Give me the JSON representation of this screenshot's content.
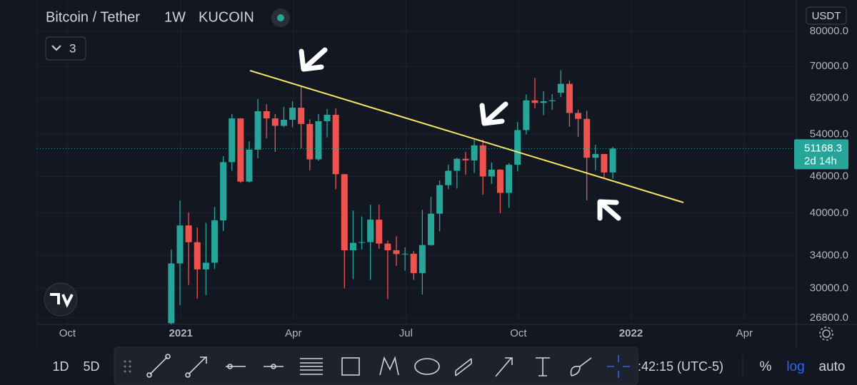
{
  "header": {
    "symbol": "Bitcoin / Tether",
    "interval": "1W",
    "exchange": "KUCOIN",
    "indicators": "3",
    "currency": "USDT"
  },
  "chart_data": {
    "type": "candlestick",
    "log": true,
    "grid": true,
    "up_color": "#26a69a",
    "down_color": "#ef5350",
    "open": [
      26270,
      33000,
      38150,
      35790,
      32260,
      33090,
      38900,
      48580,
      57400,
      45100,
      50950,
      59000,
      57400,
      55800,
      57100,
      59800,
      56200,
      49100,
      56800,
      58200,
      46400,
      34700,
      35700,
      35800,
      39000,
      35600,
      34700,
      34200,
      34250,
      31800,
      35400,
      39900,
      44500,
      47000,
      49200,
      48900,
      51800,
      46000,
      47200,
      43200,
      48100,
      54900,
      61500,
      60900,
      61300,
      63300,
      65500,
      58600,
      57300,
      49400,
      50100,
      46700
    ],
    "high": [
      34780,
      41950,
      40100,
      37850,
      38530,
      40950,
      49700,
      58350,
      57500,
      52600,
      61800,
      60600,
      58400,
      60000,
      61300,
      64850,
      57200,
      58400,
      59500,
      59600,
      46400,
      40400,
      39500,
      41300,
      41300,
      36000,
      36600,
      35100,
      34600,
      40500,
      42600,
      45300,
      48100,
      49400,
      50500,
      52900,
      52900,
      48500,
      47300,
      48400,
      56600,
      62900,
      67000,
      63700,
      63000,
      69000,
      66300,
      59300,
      59100,
      51900,
      50100,
      51500
    ],
    "low": [
      25900,
      28130,
      30420,
      28850,
      29240,
      32300,
      37350,
      47000,
      44900,
      44950,
      49300,
      53200,
      50500,
      55500,
      55500,
      51200,
      47100,
      48800,
      53400,
      43800,
      30000,
      31100,
      34800,
      31000,
      34900,
      28800,
      32700,
      32100,
      31000,
      29300,
      35300,
      37300,
      43800,
      43900,
      46300,
      46600,
      42900,
      44700,
      40000,
      40800,
      46900,
      54000,
      59600,
      58100,
      59300,
      62300,
      55600,
      53500,
      42000,
      47100,
      45600,
      45600
    ],
    "close": [
      33000,
      38150,
      35790,
      32260,
      33090,
      38900,
      48580,
      57400,
      45100,
      50950,
      59000,
      57400,
      55800,
      57100,
      59800,
      56200,
      49100,
      56800,
      58200,
      46400,
      34700,
      35700,
      35800,
      39000,
      35600,
      34700,
      34200,
      34250,
      31800,
      35400,
      39900,
      44500,
      47000,
      49200,
      48900,
      51800,
      46000,
      47200,
      43200,
      48100,
      54900,
      61500,
      60900,
      61300,
      61500,
      65500,
      58600,
      57300,
      49400,
      50100,
      46700,
      51168.3
    ],
    "last_value": 51168.3,
    "countdown": "2d 14h",
    "ylim": [
      26150,
      90200
    ],
    "yticks": [
      {
        "value": 26800,
        "label": "26800.0"
      },
      {
        "value": 30000,
        "label": "30000.0"
      },
      {
        "value": 34000,
        "label": "34000.0"
      },
      {
        "value": 40000,
        "label": "40000.0"
      },
      {
        "value": 46000,
        "label": "46000.0"
      },
      {
        "value": 54000,
        "label": "54000.0"
      },
      {
        "value": 62000,
        "label": "62000.0"
      },
      {
        "value": 70000,
        "label": "70000.0"
      },
      {
        "value": 80000,
        "label": "80000.0"
      }
    ],
    "xlim": [
      -15.5,
      72.2
    ],
    "xticks": [
      {
        "value": -12,
        "label": "Oct"
      },
      {
        "value": 1.1,
        "label": "2021"
      },
      {
        "value": 14.1,
        "label": "Apr"
      },
      {
        "value": 27.1,
        "label": "Jul"
      },
      {
        "value": 40.1,
        "label": "Oct"
      },
      {
        "value": 53.1,
        "label": "2022"
      },
      {
        "value": 66.2,
        "label": "Apr"
      }
    ]
  },
  "toolbar": {
    "ranges": [
      "1D",
      "5D"
    ],
    "clock": ":42:15 (UTC-5)",
    "buttons": [
      "%",
      "log",
      "auto"
    ]
  }
}
